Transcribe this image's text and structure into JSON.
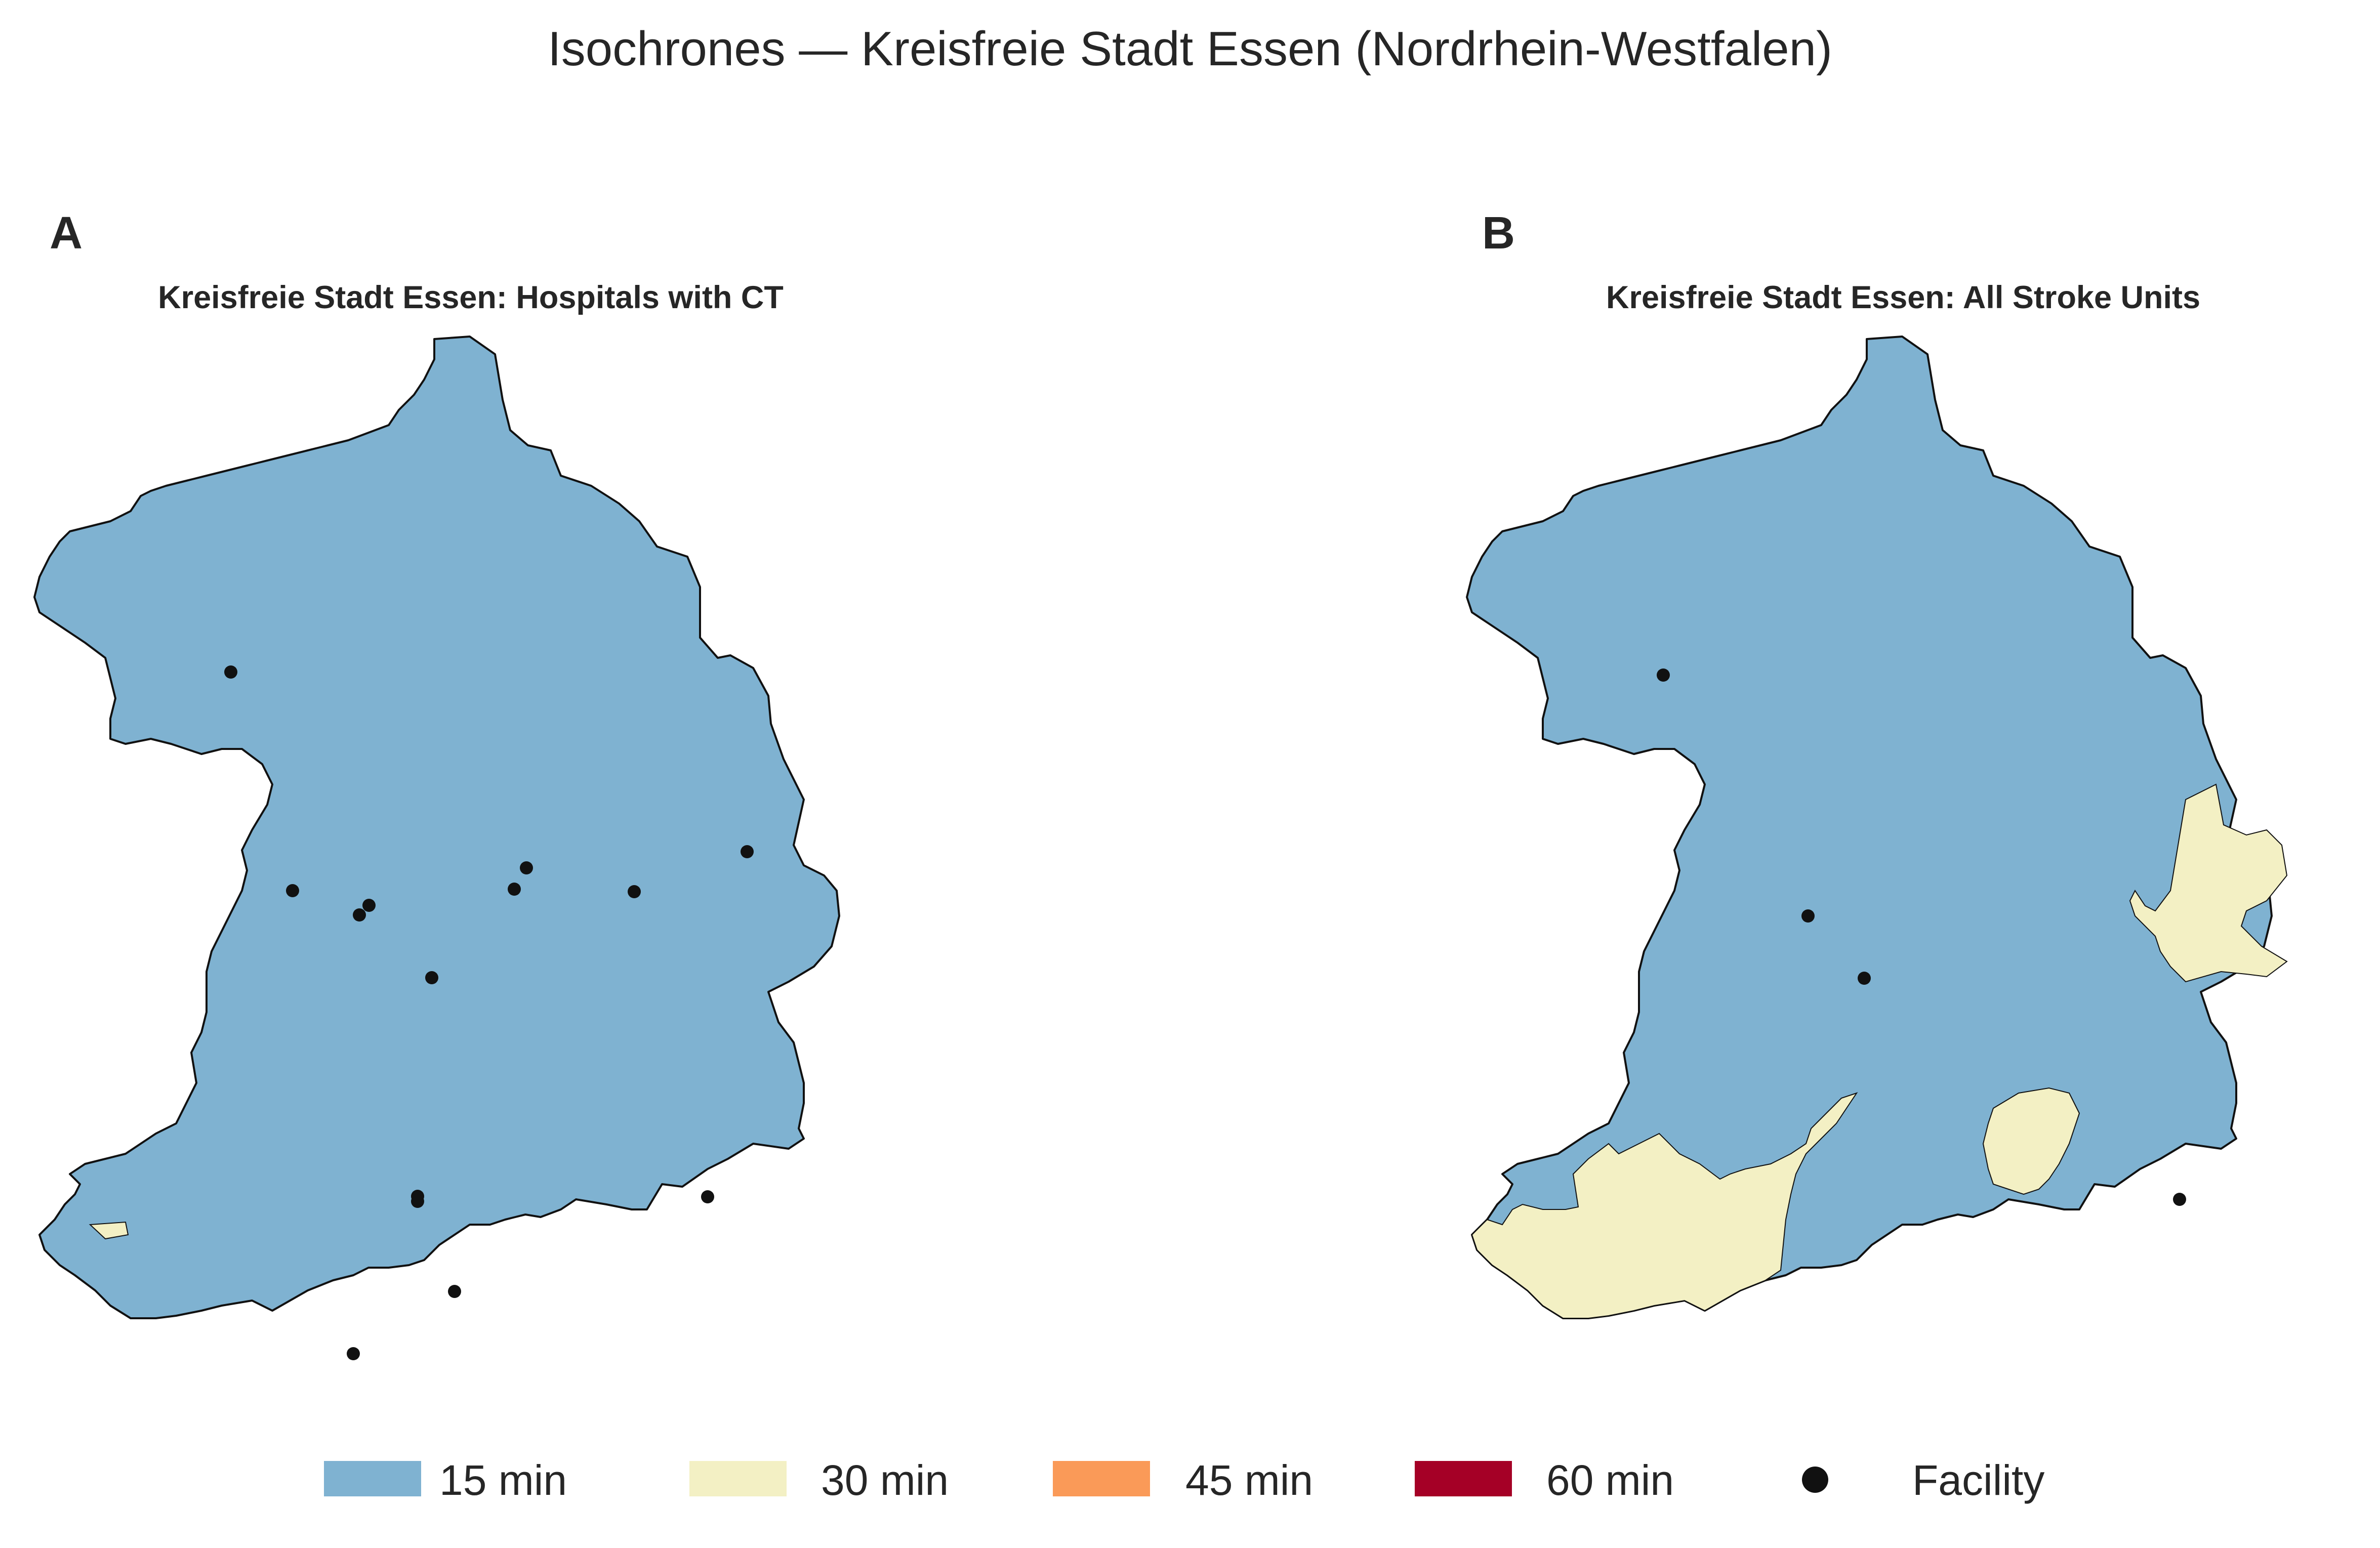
{
  "title": "Isochrones — Kreisfreie Stadt Essen (Nordrhein-Westfalen)",
  "colors": {
    "min15": "#7fb2d1",
    "min30": "#f3f0c4",
    "min45": "#fa9a58",
    "min60": "#a50026",
    "facility": "#111111",
    "outline": "#111111"
  },
  "panels": [
    {
      "letter": "A",
      "title": "Kreisfreie Stadt Essen: Hospitals with CT",
      "facility_count": 15
    },
    {
      "letter": "B",
      "title": "Kreisfreie Stadt Essen: All Stroke Units",
      "facility_count": 4
    }
  ],
  "legend": [
    {
      "label": "15 min",
      "color": "#7fb2d1",
      "kind": "swatch"
    },
    {
      "label": "30 min",
      "color": "#f3f0c4",
      "kind": "swatch"
    },
    {
      "label": "45 min",
      "color": "#fa9a58",
      "kind": "swatch"
    },
    {
      "label": "60 min",
      "color": "#a50026",
      "kind": "swatch"
    },
    {
      "label": "Facility",
      "color": "#111111",
      "kind": "dot"
    }
  ]
}
